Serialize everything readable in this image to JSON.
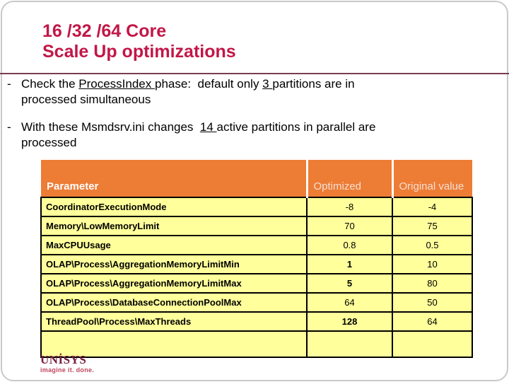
{
  "title": {
    "line1": "16 /32 /64 Core",
    "line2": "Scale Up optimizations"
  },
  "bullets": [
    {
      "lines": [
        [
          {
            "t": "Check the "
          },
          {
            "t": "ProcessIndex ",
            "u": true
          },
          {
            "t": "phase:  default only "
          },
          {
            "t": "3 ",
            "u": true
          },
          {
            "t": "partitions are in"
          }
        ],
        [
          {
            "t": "processed simultaneous"
          }
        ]
      ]
    },
    {
      "lines": [
        [
          {
            "t": "With these Msmdsrv.ini changes  "
          },
          {
            "t": "14 ",
            "u": true
          },
          {
            "t": "active partitions in parallel are"
          }
        ],
        [
          {
            "t": "processed"
          }
        ]
      ]
    }
  ],
  "table": {
    "headers": [
      "Parameter",
      "Optimized",
      "Original value"
    ],
    "rows": [
      {
        "parameter": "CoordinatorExecutionMode",
        "optimized": "-8",
        "original": "-4",
        "optimized_bold": false
      },
      {
        "parameter": "Memory\\LowMemoryLimit",
        "optimized": "70",
        "original": "75",
        "optimized_bold": false
      },
      {
        "parameter": "MaxCPUUsage",
        "optimized": "0.8",
        "original": "0.5",
        "optimized_bold": false
      },
      {
        "parameter": "OLAP\\Process\\AggregationMemoryLimitMin",
        "optimized": "1",
        "original": "10",
        "optimized_bold": true
      },
      {
        "parameter": "OLAP\\Process\\AggregationMemoryLimitMax",
        "optimized": "5",
        "original": "80",
        "optimized_bold": true
      },
      {
        "parameter": "OLAP\\Process\\DatabaseConnectionPoolMax",
        "optimized": "64",
        "original": "50",
        "optimized_bold": false
      },
      {
        "parameter": "ThreadPool\\Process\\MaxThreads",
        "optimized": "128",
        "original": "64",
        "optimized_bold": true
      },
      {
        "parameter": "",
        "optimized": "",
        "original": "",
        "optimized_bold": false
      }
    ]
  },
  "logo": {
    "wordmark": "UNİSYS",
    "tagline": "imagine it. done."
  },
  "colors": {
    "title": "#C21747",
    "rule": "#7A3B52",
    "header_bg": "#ED7C35",
    "header_text": "#F5DFD2",
    "header_text_bold": "#FFFFFF",
    "row_bg": "#FFFF9B",
    "border": "#000000",
    "logo": "#7B2140",
    "tagline": "#C0455A"
  }
}
